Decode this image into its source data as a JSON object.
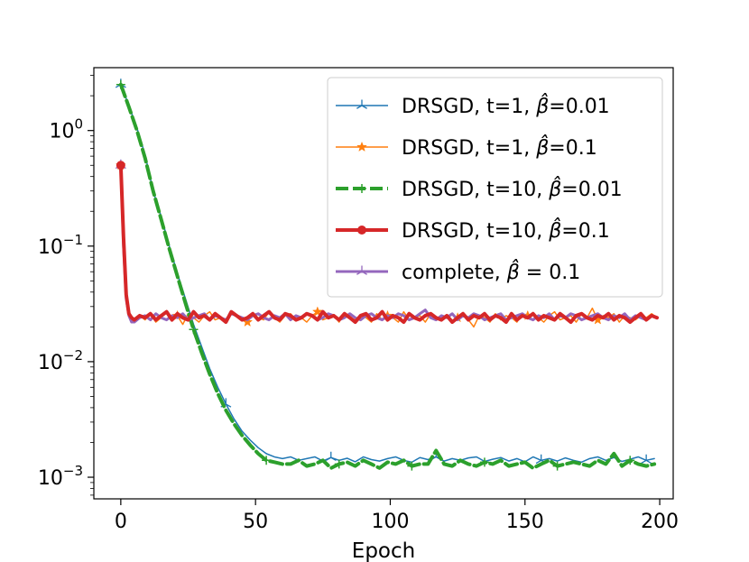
{
  "chart_data": {
    "type": "line",
    "title": "",
    "xlabel": "Epoch",
    "ylabel": "",
    "yscale": "log",
    "xlim": [
      -10,
      205
    ],
    "ylim": [
      0.00065,
      3.5
    ],
    "x_ticks": [
      0,
      50,
      100,
      150,
      200
    ],
    "x_tick_labels": [
      "0",
      "50",
      "100",
      "150",
      "200"
    ],
    "y_ticks": [
      1,
      0.1,
      0.01,
      0.001
    ],
    "y_tick_labels": [
      {
        "base": "10",
        "exp": "0"
      },
      {
        "base": "10",
        "exp": "−1"
      },
      {
        "base": "10",
        "exp": "−2"
      },
      {
        "base": "10",
        "exp": "−3"
      }
    ],
    "legend_position": "top-right",
    "series": [
      {
        "name": "DRSGD, t=1, β̂=0.01",
        "label_prefix": "DRSGD, t=1, ",
        "label_suffix": "=0.01",
        "color": "#1f77b4",
        "line_width": 1.5,
        "dash": "",
        "marker": "tri",
        "marker_every": 13,
        "x": [
          0,
          3,
          6,
          9,
          12,
          15,
          18,
          21,
          24,
          27,
          30,
          33,
          36,
          39,
          42,
          45,
          48,
          51,
          54,
          57,
          60,
          63,
          66,
          69,
          72,
          75,
          78,
          81,
          84,
          87,
          90,
          93,
          96,
          99,
          102,
          105,
          108,
          111,
          114,
          117,
          120,
          123,
          126,
          129,
          132,
          135,
          138,
          141,
          144,
          147,
          150,
          153,
          156,
          159,
          162,
          165,
          168,
          171,
          174,
          177,
          180,
          183,
          186,
          189,
          192,
          195,
          198
        ],
        "values": [
          2.5,
          1.65,
          1.05,
          0.62,
          0.3,
          0.18,
          0.1,
          0.058,
          0.035,
          0.021,
          0.0135,
          0.0087,
          0.006,
          0.0043,
          0.0032,
          0.0025,
          0.0021,
          0.0018,
          0.0016,
          0.0015,
          0.00145,
          0.0015,
          0.0014,
          0.00145,
          0.0015,
          0.00138,
          0.00148,
          0.0014,
          0.00146,
          0.00136,
          0.0015,
          0.00142,
          0.00138,
          0.00145,
          0.0015,
          0.0014,
          0.00135,
          0.00148,
          0.00142,
          0.0015,
          0.00138,
          0.00145,
          0.0014,
          0.00147,
          0.0015,
          0.00137,
          0.00143,
          0.00148,
          0.00138,
          0.00145,
          0.00136,
          0.0015,
          0.0014,
          0.00145,
          0.00138,
          0.00147,
          0.0014,
          0.00135,
          0.00145,
          0.0015,
          0.0014,
          0.00148,
          0.00137,
          0.00143,
          0.0015,
          0.0014,
          0.00145
        ]
      },
      {
        "name": "DRSGD, t=1, β̂=0.1",
        "label_prefix": "DRSGD, t=1, ",
        "label_suffix": "=0.1",
        "color": "#ff7f0e",
        "line_width": 1.5,
        "dash": "",
        "marker": "star",
        "marker_every": 13,
        "x": [
          0,
          1,
          2,
          3,
          4,
          5,
          7,
          9,
          11,
          13,
          15,
          17,
          19,
          21,
          23,
          25,
          27,
          29,
          31,
          33,
          35,
          37,
          39,
          41,
          43,
          45,
          47,
          49,
          51,
          53,
          55,
          57,
          59,
          61,
          63,
          65,
          67,
          69,
          71,
          73,
          75,
          77,
          79,
          81,
          83,
          85,
          87,
          89,
          91,
          93,
          95,
          97,
          99,
          101,
          103,
          105,
          107,
          109,
          111,
          113,
          115,
          117,
          119,
          121,
          123,
          125,
          127,
          129,
          131,
          133,
          135,
          137,
          139,
          141,
          143,
          145,
          147,
          149,
          151,
          153,
          155,
          157,
          159,
          161,
          163,
          165,
          167,
          169,
          171,
          173,
          175,
          177,
          179,
          181,
          183,
          185,
          187,
          189,
          191,
          193,
          195,
          197,
          199
        ],
        "values": [
          0.5,
          0.12,
          0.04,
          0.026,
          0.024,
          0.022,
          0.025,
          0.023,
          0.026,
          0.022,
          0.024,
          0.027,
          0.023,
          0.025,
          0.021,
          0.026,
          0.024,
          0.022,
          0.025,
          0.027,
          0.023,
          0.024,
          0.022,
          0.026,
          0.025,
          0.023,
          0.022,
          0.026,
          0.024,
          0.023,
          0.027,
          0.024,
          0.022,
          0.025,
          0.026,
          0.023,
          0.024,
          0.022,
          0.025,
          0.027,
          0.023,
          0.024,
          0.025,
          0.022,
          0.026,
          0.024,
          0.023,
          0.025,
          0.024,
          0.022,
          0.026,
          0.023,
          0.025,
          0.024,
          0.022,
          0.027,
          0.023,
          0.024,
          0.025,
          0.022,
          0.026,
          0.024,
          0.023,
          0.025,
          0.022,
          0.024,
          0.026,
          0.023,
          0.02,
          0.025,
          0.024,
          0.022,
          0.026,
          0.023,
          0.025,
          0.024,
          0.022,
          0.026,
          0.025,
          0.023,
          0.024,
          0.022,
          0.025,
          0.027,
          0.023,
          0.024,
          0.025,
          0.022,
          0.026,
          0.024,
          0.029,
          0.023,
          0.025,
          0.024,
          0.026,
          0.022,
          0.025,
          0.024,
          0.023,
          0.025,
          0.024,
          0.026,
          0.024
        ]
      },
      {
        "name": "DRSGD, t=10, β̂=0.01",
        "label_prefix": "DRSGD, t=10, ",
        "label_suffix": "=0.01",
        "color": "#2ca02c",
        "line_width": 4,
        "dash": "14,5",
        "marker": "plus",
        "marker_every": 9,
        "x": [
          0,
          3,
          6,
          9,
          12,
          15,
          18,
          21,
          24,
          27,
          30,
          33,
          36,
          39,
          42,
          45,
          48,
          51,
          54,
          57,
          60,
          63,
          66,
          69,
          72,
          75,
          78,
          81,
          84,
          87,
          90,
          93,
          96,
          99,
          102,
          105,
          108,
          111,
          114,
          117,
          120,
          123,
          126,
          129,
          132,
          135,
          138,
          141,
          144,
          147,
          150,
          153,
          156,
          159,
          162,
          165,
          168,
          171,
          174,
          177,
          180,
          183,
          186,
          189,
          192,
          195,
          198
        ],
        "values": [
          2.5,
          1.6,
          1.0,
          0.58,
          0.3,
          0.17,
          0.095,
          0.055,
          0.032,
          0.019,
          0.012,
          0.0078,
          0.0053,
          0.0038,
          0.0029,
          0.0023,
          0.0019,
          0.0016,
          0.0014,
          0.00135,
          0.0013,
          0.0013,
          0.0014,
          0.00125,
          0.0013,
          0.0014,
          0.0012,
          0.0013,
          0.00135,
          0.00125,
          0.0014,
          0.0013,
          0.0012,
          0.00135,
          0.0013,
          0.0014,
          0.00125,
          0.0013,
          0.0013,
          0.0017,
          0.0013,
          0.00125,
          0.0014,
          0.0013,
          0.00125,
          0.00135,
          0.0013,
          0.0014,
          0.00125,
          0.0013,
          0.00135,
          0.0012,
          0.0013,
          0.0014,
          0.00125,
          0.0013,
          0.00135,
          0.0013,
          0.00125,
          0.0014,
          0.0013,
          0.0016,
          0.00125,
          0.0014,
          0.0013,
          0.00125,
          0.0013
        ]
      },
      {
        "name": "DRSGD, t=10, β̂=0.1",
        "label_prefix": "DRSGD, t=10, ",
        "label_suffix": "=0.1",
        "color": "#d62728",
        "line_width": 4,
        "dash": "",
        "marker": "circle",
        "marker_every": 0,
        "x": [
          0,
          1,
          2,
          3,
          4,
          5,
          7,
          9,
          11,
          13,
          15,
          17,
          19,
          21,
          23,
          25,
          27,
          29,
          31,
          33,
          35,
          37,
          39,
          41,
          43,
          45,
          47,
          49,
          51,
          53,
          55,
          57,
          59,
          61,
          63,
          65,
          67,
          69,
          71,
          73,
          75,
          77,
          79,
          81,
          83,
          85,
          87,
          89,
          91,
          93,
          95,
          97,
          99,
          101,
          103,
          105,
          107,
          109,
          111,
          113,
          115,
          117,
          119,
          121,
          123,
          125,
          127,
          129,
          131,
          133,
          135,
          137,
          139,
          141,
          143,
          145,
          147,
          149,
          151,
          153,
          155,
          157,
          159,
          161,
          163,
          165,
          167,
          169,
          171,
          173,
          175,
          177,
          179,
          181,
          183,
          185,
          187,
          189,
          191,
          193,
          195,
          197,
          199
        ],
        "values": [
          0.5,
          0.12,
          0.038,
          0.026,
          0.024,
          0.023,
          0.025,
          0.024,
          0.026,
          0.023,
          0.025,
          0.027,
          0.023,
          0.026,
          0.024,
          0.023,
          0.027,
          0.024,
          0.025,
          0.023,
          0.026,
          0.024,
          0.022,
          0.027,
          0.025,
          0.023,
          0.024,
          0.026,
          0.023,
          0.025,
          0.027,
          0.024,
          0.023,
          0.026,
          0.025,
          0.023,
          0.024,
          0.026,
          0.025,
          0.023,
          0.027,
          0.024,
          0.025,
          0.023,
          0.026,
          0.024,
          0.022,
          0.025,
          0.026,
          0.023,
          0.024,
          0.027,
          0.023,
          0.025,
          0.024,
          0.022,
          0.026,
          0.024,
          0.023,
          0.025,
          0.026,
          0.024,
          0.023,
          0.025,
          0.022,
          0.024,
          0.026,
          0.023,
          0.025,
          0.024,
          0.026,
          0.023,
          0.025,
          0.024,
          0.022,
          0.026,
          0.023,
          0.025,
          0.024,
          0.026,
          0.023,
          0.025,
          0.024,
          0.023,
          0.026,
          0.024,
          0.022,
          0.025,
          0.026,
          0.024,
          0.023,
          0.025,
          0.024,
          0.026,
          0.023,
          0.025,
          0.024,
          0.022,
          0.024,
          0.026,
          0.023,
          0.025,
          0.024
        ]
      },
      {
        "name": "complete, β̂ = 0.1",
        "label_prefix": "complete, ",
        "label_suffix": " = 0.1",
        "color": "#9467bd",
        "line_width": 3,
        "dash": "",
        "marker": "tri",
        "marker_every": 0,
        "x": [
          0,
          1,
          2,
          3,
          4,
          5,
          7,
          9,
          11,
          13,
          15,
          17,
          19,
          21,
          23,
          25,
          27,
          29,
          31,
          33,
          35,
          37,
          39,
          41,
          43,
          45,
          47,
          49,
          51,
          53,
          55,
          57,
          59,
          61,
          63,
          65,
          67,
          69,
          71,
          73,
          75,
          77,
          79,
          81,
          83,
          85,
          87,
          89,
          91,
          93,
          95,
          97,
          99,
          101,
          103,
          105,
          107,
          109,
          111,
          113,
          115,
          117,
          119,
          121,
          123,
          125,
          127,
          129,
          131,
          133,
          135,
          137,
          139,
          141,
          143,
          145,
          147,
          149,
          151,
          153,
          155,
          157,
          159,
          161,
          163,
          165,
          167,
          169,
          171,
          173,
          175,
          177,
          179,
          181,
          183,
          185,
          187,
          189,
          191,
          193,
          195,
          197,
          199
        ],
        "values": [
          0.5,
          0.1,
          0.035,
          0.025,
          0.022,
          0.022,
          0.024,
          0.025,
          0.023,
          0.026,
          0.024,
          0.023,
          0.025,
          0.024,
          0.026,
          0.023,
          0.024,
          0.025,
          0.026,
          0.023,
          0.025,
          0.024,
          0.023,
          0.026,
          0.025,
          0.024,
          0.023,
          0.025,
          0.026,
          0.024,
          0.023,
          0.025,
          0.024,
          0.026,
          0.023,
          0.025,
          0.024,
          0.026,
          0.025,
          0.023,
          0.024,
          0.026,
          0.025,
          0.023,
          0.024,
          0.026,
          0.024,
          0.023,
          0.025,
          0.026,
          0.024,
          0.023,
          0.025,
          0.024,
          0.026,
          0.025,
          0.023,
          0.024,
          0.026,
          0.028,
          0.024,
          0.023,
          0.025,
          0.024,
          0.026,
          0.023,
          0.025,
          0.024,
          0.026,
          0.025,
          0.023,
          0.024,
          0.025,
          0.026,
          0.023,
          0.024,
          0.025,
          0.026,
          0.024,
          0.023,
          0.025,
          0.024,
          0.026,
          0.023,
          0.025,
          0.024,
          0.026,
          0.025,
          0.023,
          0.024,
          0.025,
          0.026,
          0.024,
          0.023,
          0.025,
          0.024,
          0.026,
          0.023,
          0.025,
          0.024,
          0.023,
          0.025,
          0.024
        ]
      }
    ]
  }
}
